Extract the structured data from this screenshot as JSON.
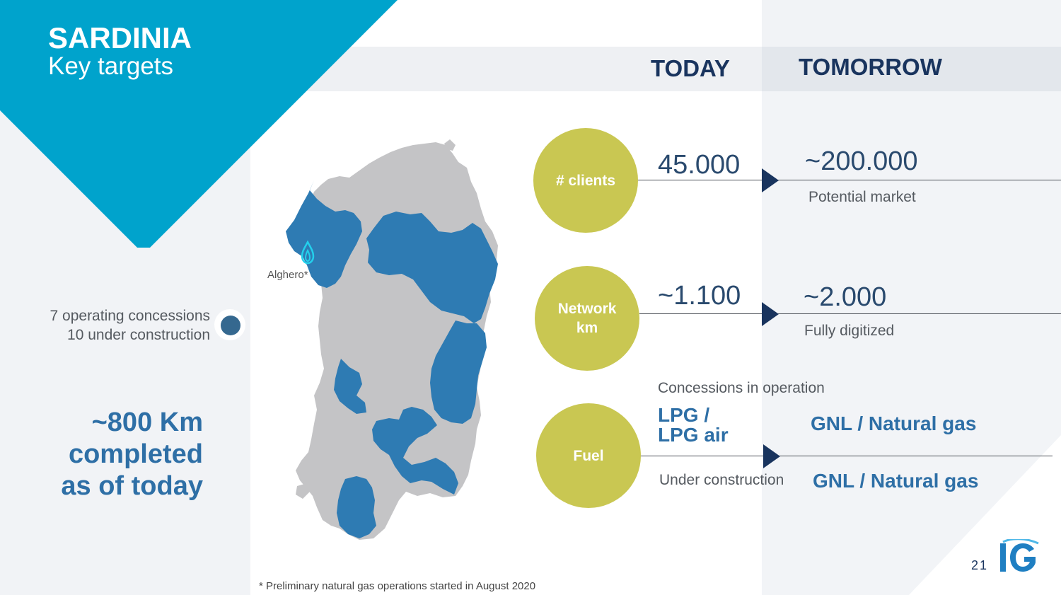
{
  "header": {
    "title": "SARDINIA",
    "subtitle": "Key targets"
  },
  "columns": {
    "today": "TODAY",
    "tomorrow": "TOMORROW"
  },
  "left": {
    "concessions_line1": "7 operating concessions",
    "concessions_line2": "10 under construction",
    "km_line1": "~800 Km",
    "km_line2": "completed",
    "km_line3": "as of today"
  },
  "map": {
    "city_label": "Alghero*"
  },
  "rows": {
    "clients": {
      "label": "# clients",
      "today": "45.000",
      "tomorrow": "~200.000",
      "tomorrow_note": "Potential market"
    },
    "network": {
      "label_line1": "Network",
      "label_line2": "km",
      "today": "~1.100",
      "tomorrow": "~2.000",
      "tomorrow_note": "Fully digitized"
    },
    "fuel": {
      "label": "Fuel",
      "operation_label": "Concessions in operation",
      "operation_today_line1": "LPG /",
      "operation_today_line2": "LPG air",
      "operation_tomorrow": "GNL / Natural gas",
      "construction_label": "Under construction",
      "construction_tomorrow": "GNL / Natural gas"
    }
  },
  "footnote": "* Preliminary natural gas operations started in August 2020",
  "page_number": "21",
  "logo_text": "IG",
  "colors": {
    "accent_blue": "#00a3cc",
    "navy": "#19345e",
    "olive": "#c9c752",
    "region_blue": "#2e7bb3",
    "region_grey": "#c4c4c6"
  }
}
